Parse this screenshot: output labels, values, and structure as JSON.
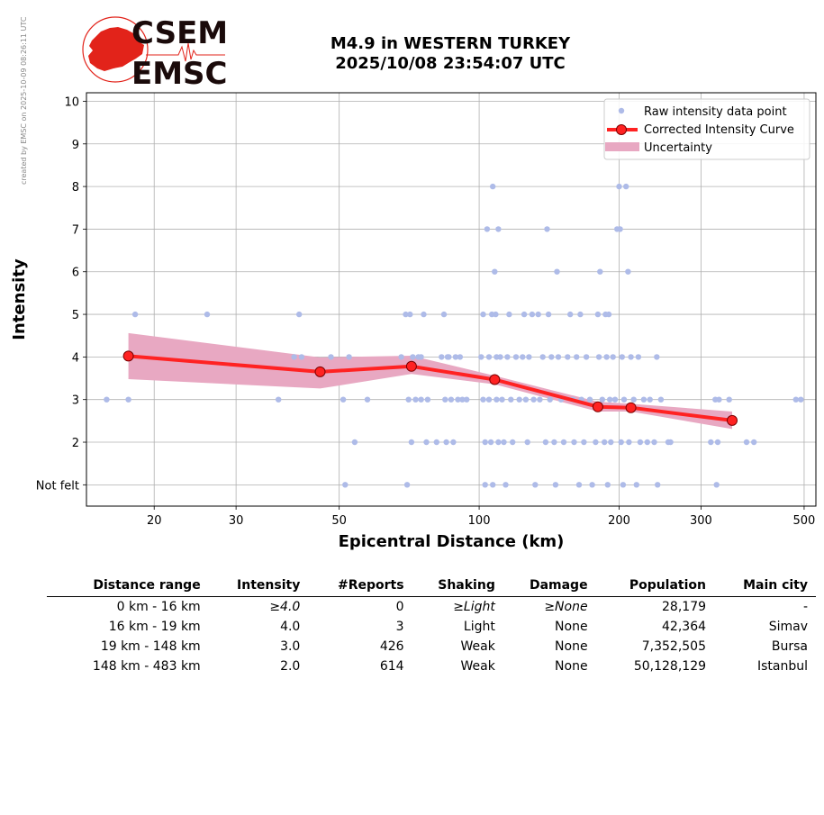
{
  "credit": "created by EMSC on 2025-10-09 08:26:11 UTC",
  "logo": {
    "line1": "CSEM",
    "line2": "EMSC",
    "color": "#e2231a"
  },
  "title": {
    "line1": "M4.9 in WESTERN TURKEY",
    "line2": "2025/10/08 23:54:07 UTC"
  },
  "chart_data": {
    "type": "scatter",
    "xlabel": "Epicentral Distance (km)",
    "ylabel": "Intensity",
    "xscale": "log",
    "xlim": [
      14.3,
      530
    ],
    "ylim": [
      0.5,
      10.2
    ],
    "xticks": [
      20,
      30,
      50,
      100,
      200,
      300,
      500
    ],
    "yticks": [
      1,
      2,
      3,
      4,
      5,
      6,
      7,
      8,
      9,
      10
    ],
    "ytick_labels": [
      "Not felt",
      "2",
      "3",
      "4",
      "5",
      "6",
      "7",
      "8",
      "9",
      "10"
    ],
    "grid": true,
    "legend_position": "top-right",
    "legend": [
      "Raw intensity data point",
      "Corrected Intensity Curve",
      "Uncertainty"
    ],
    "colors": {
      "raw": "#aebbe8",
      "curve": "#ff2222",
      "marker_edge": "#7a0000",
      "uncertainty": "#e8a8c2"
    },
    "raw_points": [
      [
        15.8,
        3
      ],
      [
        17.6,
        3
      ],
      [
        18.2,
        5
      ],
      [
        26,
        5
      ],
      [
        37,
        3
      ],
      [
        41,
        5
      ],
      [
        40,
        4
      ],
      [
        41.5,
        4
      ],
      [
        48,
        4
      ],
      [
        51,
        3
      ],
      [
        51.5,
        1
      ],
      [
        52.5,
        4
      ],
      [
        54,
        2
      ],
      [
        57.5,
        3
      ],
      [
        68,
        4
      ],
      [
        69.5,
        5
      ],
      [
        70,
        1
      ],
      [
        70.5,
        3
      ],
      [
        71,
        5
      ],
      [
        71.5,
        2
      ],
      [
        72,
        4
      ],
      [
        73,
        3
      ],
      [
        74,
        4
      ],
      [
        75,
        4
      ],
      [
        75,
        3
      ],
      [
        76,
        5
      ],
      [
        77,
        2
      ],
      [
        77.5,
        3
      ],
      [
        81,
        2
      ],
      [
        83,
        4
      ],
      [
        84,
        5
      ],
      [
        84.5,
        3
      ],
      [
        85,
        2
      ],
      [
        85.5,
        4
      ],
      [
        86,
        4
      ],
      [
        87,
        3
      ],
      [
        88,
        2
      ],
      [
        89,
        4
      ],
      [
        90,
        3
      ],
      [
        91,
        4
      ],
      [
        92,
        3
      ],
      [
        94,
        3
      ],
      [
        101,
        4
      ],
      [
        102,
        5
      ],
      [
        102,
        3
      ],
      [
        103,
        2
      ],
      [
        103,
        1
      ],
      [
        104,
        7
      ],
      [
        105,
        4
      ],
      [
        105,
        3
      ],
      [
        106,
        2
      ],
      [
        106.5,
        5
      ],
      [
        107,
        8
      ],
      [
        107,
        1
      ],
      [
        108,
        6
      ],
      [
        108.5,
        5
      ],
      [
        109,
        4
      ],
      [
        109,
        3
      ],
      [
        110,
        7
      ],
      [
        110,
        2
      ],
      [
        111,
        4
      ],
      [
        112,
        3
      ],
      [
        113,
        2
      ],
      [
        114,
        1
      ],
      [
        115,
        4
      ],
      [
        116,
        5
      ],
      [
        117,
        3
      ],
      [
        118,
        2
      ],
      [
        120,
        4
      ],
      [
        122,
        3
      ],
      [
        124,
        4
      ],
      [
        125,
        5
      ],
      [
        126,
        3
      ],
      [
        127,
        2
      ],
      [
        128,
        4
      ],
      [
        130,
        5
      ],
      [
        131,
        3
      ],
      [
        132,
        1
      ],
      [
        134,
        5
      ],
      [
        135,
        3
      ],
      [
        137,
        4
      ],
      [
        139,
        2
      ],
      [
        140,
        7
      ],
      [
        141,
        5
      ],
      [
        142,
        3
      ],
      [
        143,
        4
      ],
      [
        145,
        2
      ],
      [
        146,
        1
      ],
      [
        147,
        6
      ],
      [
        148,
        4
      ],
      [
        150,
        3
      ],
      [
        152,
        2
      ],
      [
        155,
        4
      ],
      [
        157,
        5
      ],
      [
        159,
        3
      ],
      [
        160,
        2
      ],
      [
        162,
        4
      ],
      [
        164,
        1
      ],
      [
        165,
        5
      ],
      [
        166,
        3
      ],
      [
        168,
        2
      ],
      [
        170,
        4
      ],
      [
        173,
        3
      ],
      [
        175,
        1
      ],
      [
        178,
        2
      ],
      [
        180,
        5
      ],
      [
        181,
        4
      ],
      [
        182,
        6
      ],
      [
        184,
        3
      ],
      [
        186,
        2
      ],
      [
        187,
        5
      ],
      [
        188,
        4
      ],
      [
        189,
        1
      ],
      [
        190,
        5
      ],
      [
        191,
        3
      ],
      [
        192,
        2
      ],
      [
        194,
        4
      ],
      [
        196,
        3
      ],
      [
        198,
        7
      ],
      [
        200,
        8
      ],
      [
        201,
        7
      ],
      [
        202,
        2
      ],
      [
        203,
        4
      ],
      [
        204,
        1
      ],
      [
        205,
        3
      ],
      [
        207,
        8
      ],
      [
        209,
        6
      ],
      [
        210,
        2
      ],
      [
        212,
        4
      ],
      [
        215,
        3
      ],
      [
        218,
        1
      ],
      [
        220,
        4
      ],
      [
        222,
        2
      ],
      [
        226,
        3
      ],
      [
        230,
        2
      ],
      [
        233,
        3
      ],
      [
        238,
        2
      ],
      [
        241,
        4
      ],
      [
        242,
        1
      ],
      [
        246,
        3
      ],
      [
        255,
        2
      ],
      [
        258,
        2
      ],
      [
        315,
        2
      ],
      [
        322,
        3
      ],
      [
        324,
        1
      ],
      [
        326,
        2
      ],
      [
        328,
        3
      ],
      [
        345,
        3
      ],
      [
        376,
        2
      ],
      [
        390,
        2
      ],
      [
        480,
        3
      ],
      [
        492,
        3
      ]
    ],
    "curve": {
      "x": [
        17.6,
        45.5,
        71.5,
        108,
        180,
        212,
        350
      ],
      "y": [
        4.02,
        3.65,
        3.78,
        3.47,
        2.83,
        2.81,
        2.51
      ]
    },
    "uncertainty": {
      "upper": [
        4.56,
        3.99,
        4.03,
        3.56,
        2.95,
        2.9,
        2.72
      ],
      "lower": [
        3.48,
        3.26,
        3.6,
        3.36,
        2.72,
        2.72,
        2.31
      ]
    }
  },
  "table": {
    "headers": [
      "Distance range",
      "Intensity",
      "#Reports",
      "Shaking",
      "Damage",
      "Population",
      "Main city"
    ],
    "rows": [
      [
        "0 km -   16 km",
        "≥4.0",
        "0",
        "≥Light",
        "≥None",
        "28,179",
        "-"
      ],
      [
        "16 km -   19 km",
        "4.0",
        "3",
        "Light",
        "None",
        "42,364",
        "Simav"
      ],
      [
        "19 km -  148 km",
        "3.0",
        "426",
        "Weak",
        "None",
        "7,352,505",
        "Bursa"
      ],
      [
        "148 km -  483 km",
        "2.0",
        "614",
        "Weak",
        "None",
        "50,128,129",
        "Istanbul"
      ]
    ]
  }
}
